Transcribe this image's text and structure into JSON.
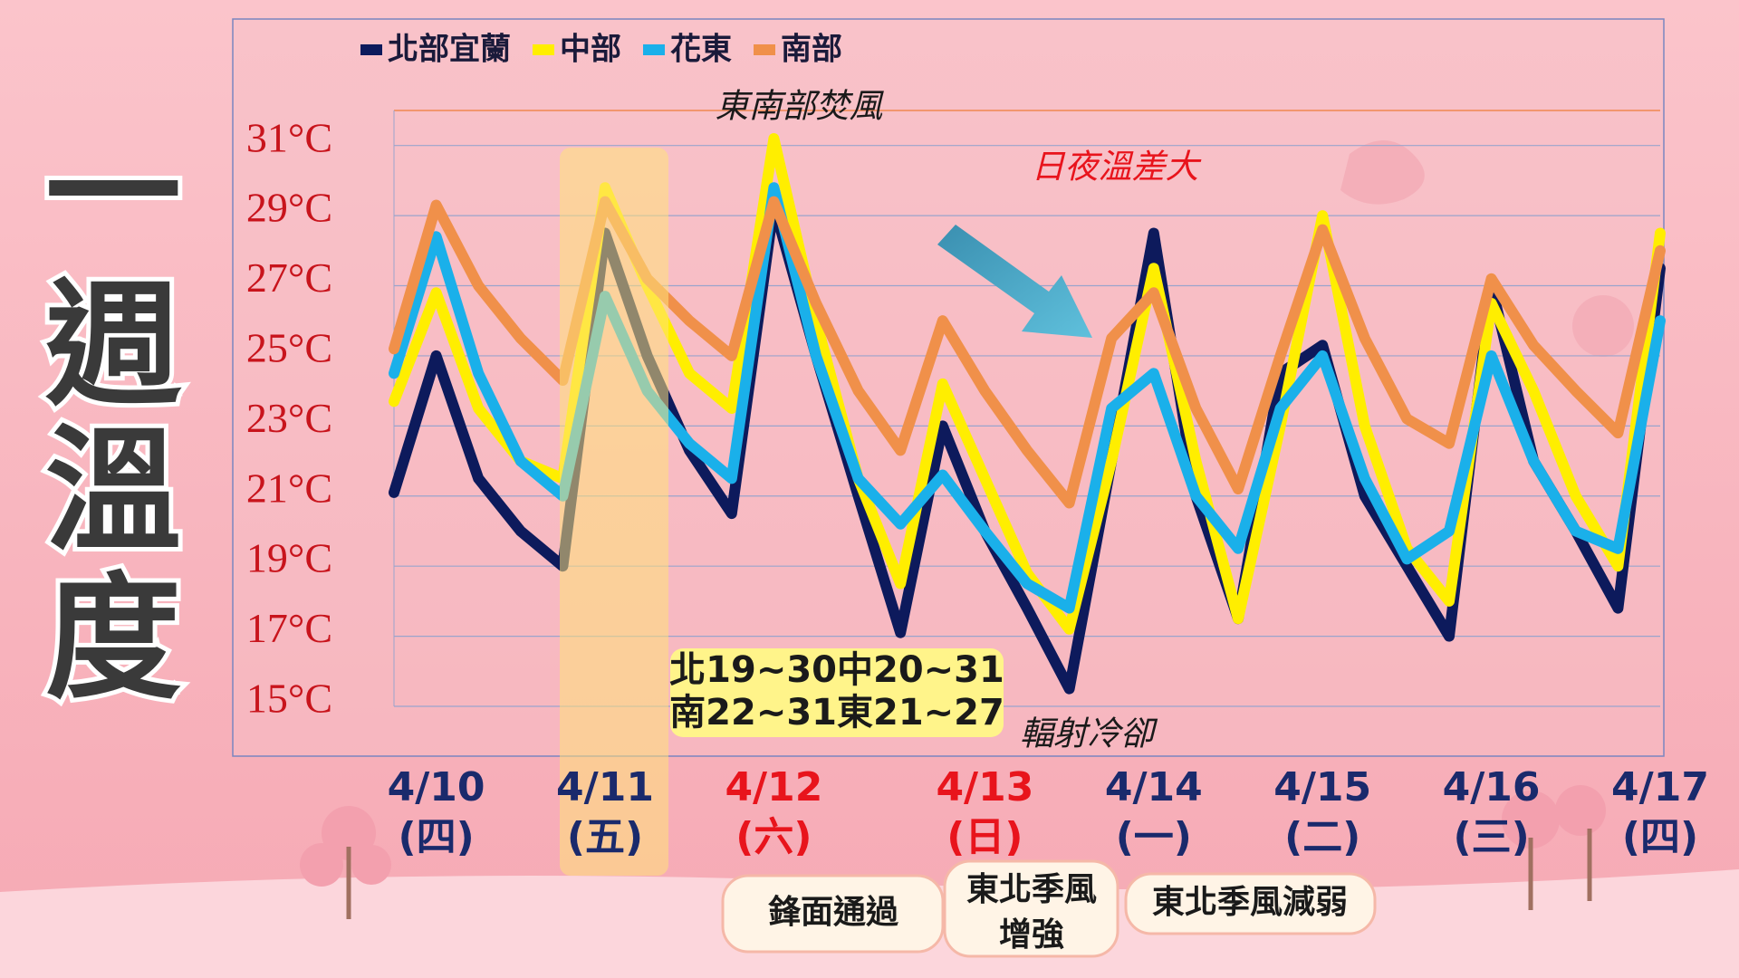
{
  "page_title": [
    "一",
    "週",
    "溫",
    "度"
  ],
  "chart_data": {
    "type": "line",
    "categories": [
      null,
      "4/10",
      null,
      null,
      null,
      "4/11",
      null,
      null,
      null,
      "4/12",
      null,
      null,
      null,
      null,
      "4/13",
      null,
      null,
      null,
      "4/14",
      null,
      null,
      null,
      "4/15",
      null,
      null,
      null,
      "4/16",
      null,
      null,
      null,
      "4/17"
    ],
    "weekdays": [
      null,
      "(四)",
      null,
      null,
      null,
      "(五)",
      null,
      null,
      null,
      "(六)",
      null,
      null,
      null,
      null,
      "(日)",
      null,
      null,
      null,
      "(一)",
      null,
      null,
      null,
      "(二)",
      null,
      null,
      null,
      "(三)",
      null,
      null,
      null,
      "(四)"
    ],
    "date_colors": [
      null,
      "#1a2a6c",
      null,
      null,
      null,
      "#1a2a6c",
      null,
      null,
      null,
      "#e8141c",
      null,
      null,
      null,
      null,
      "#e8141c",
      null,
      null,
      null,
      "#1a2a6c",
      null,
      null,
      null,
      "#1a2a6c",
      null,
      null,
      null,
      "#1a2a6c",
      null,
      null,
      null,
      "#1a2a6c"
    ],
    "series": [
      {
        "name": "北部宜蘭",
        "color": "#0d1a5c",
        "values": [
          21.1,
          25,
          21.5,
          20,
          19,
          28.5,
          25,
          22.3,
          20.5,
          29.3,
          25,
          21,
          17.1,
          23,
          20,
          17.8,
          15.5,
          22,
          28.5,
          21,
          17.5,
          24.5,
          25.3,
          21,
          19,
          17,
          27,
          22,
          20,
          17.8,
          27.5
        ]
      },
      {
        "name": "中部",
        "color": "#ffee00",
        "values": [
          23.7,
          26.8,
          23.5,
          22,
          21.5,
          29.8,
          27,
          24.5,
          23.5,
          31.2,
          26,
          21.5,
          18.5,
          24.2,
          21.5,
          18.8,
          17.2,
          22,
          27.5,
          22,
          17.5,
          23,
          29,
          23,
          19.5,
          18,
          26.5,
          24,
          21,
          19,
          28.5
        ]
      },
      {
        "name": "花東",
        "color": "#1ab0ea",
        "values": [
          24.5,
          28.4,
          24.5,
          22,
          21,
          26.7,
          24,
          22.5,
          21.5,
          29.8,
          25,
          21.5,
          20.2,
          21.6,
          20,
          18.5,
          17.8,
          23.5,
          24.5,
          21,
          19.5,
          23.5,
          25,
          21.5,
          19.2,
          20,
          25,
          22,
          20,
          19.5,
          26
        ]
      },
      {
        "name": "南部",
        "color": "#f0904a",
        "values": [
          25.2,
          29.3,
          27,
          25.5,
          24.3,
          29.4,
          27.2,
          26,
          25,
          29.4,
          26.5,
          24,
          22.3,
          26,
          24,
          22.3,
          20.8,
          25.5,
          26.8,
          23.5,
          21.2,
          25,
          28.6,
          25.5,
          23.2,
          22.5,
          27.2,
          25.3,
          24,
          22.8,
          28
        ]
      }
    ],
    "ylim": [
      15,
      32
    ],
    "yticks": [
      {
        "value": 15,
        "label": "15°C"
      },
      {
        "value": 17,
        "label": "17°C"
      },
      {
        "value": 19,
        "label": "19°C"
      },
      {
        "value": 21,
        "label": "21°C"
      },
      {
        "value": 23,
        "label": "23°C"
      },
      {
        "value": 25,
        "label": "25°C"
      },
      {
        "value": 27,
        "label": "27°C"
      },
      {
        "value": 29,
        "label": "29°C"
      },
      {
        "value": 31,
        "label": "31°C"
      }
    ],
    "grid": true,
    "annotations": {
      "foehn": "東南部焚風",
      "diurnal": "日夜溫差大",
      "radiative": "輻射冷卻",
      "range_box": [
        "北19~30中20~31",
        "南22~31東21~27"
      ]
    }
  },
  "events": [
    [
      "鋒面通過"
    ],
    [
      "東北季風",
      "增強"
    ],
    [
      "東北季風減弱"
    ]
  ]
}
